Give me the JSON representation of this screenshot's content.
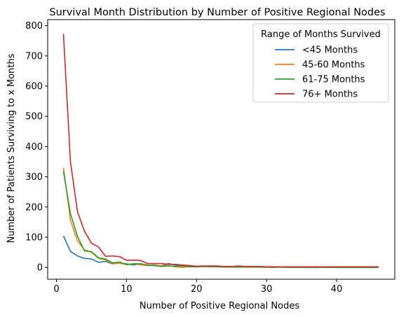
{
  "chart_data": {
    "type": "line",
    "title": "Survival Month Distribution by Number of Positive Regional Nodes",
    "xlabel": "Number of Positive Regional Nodes",
    "ylabel": "Number of Patients Surviving to x Months",
    "xlim": [
      -1.25,
      48.3
    ],
    "ylim": [
      -39,
      820
    ],
    "xticks": [
      0,
      10,
      20,
      30,
      40
    ],
    "yticks": [
      0,
      100,
      200,
      300,
      400,
      500,
      600,
      700,
      800
    ],
    "grid": false,
    "legend": {
      "title": "Range of Months Survived",
      "placement": "top-right"
    },
    "series": [
      {
        "name": "<45 Months",
        "color": "#1f77b4",
        "x": [
          1,
          2,
          3,
          4,
          5,
          6,
          7,
          8,
          9,
          10,
          11,
          12,
          13,
          14,
          15,
          16,
          17,
          18,
          19,
          20,
          21,
          22,
          23,
          24,
          25,
          26,
          27,
          28,
          29,
          30,
          31,
          32,
          33,
          34,
          35,
          36,
          37,
          38,
          39,
          40,
          41,
          42,
          43,
          44,
          45,
          46
        ],
        "values": [
          104,
          53,
          38,
          30,
          28,
          17,
          20,
          12,
          14,
          12,
          8,
          12,
          7,
          8,
          5,
          13,
          7,
          4,
          3,
          2,
          3,
          2,
          2,
          1,
          1,
          1,
          1,
          1,
          1,
          1,
          1,
          1,
          1,
          0,
          1,
          0,
          1,
          0,
          0,
          0,
          0,
          0,
          0,
          0,
          0,
          0
        ]
      },
      {
        "name": "45-60 Months",
        "color": "#ff7f0e",
        "x": [
          1,
          2,
          3,
          4,
          5,
          6,
          7,
          8,
          9,
          10,
          11,
          12,
          13,
          14,
          15,
          16,
          17,
          18,
          19,
          20,
          21,
          22,
          23,
          24,
          25,
          26,
          27,
          28,
          29,
          30,
          31,
          32,
          33,
          34,
          35,
          36,
          37,
          38,
          39,
          40,
          41,
          42,
          43,
          44,
          45,
          46
        ],
        "values": [
          330,
          157,
          88,
          58,
          50,
          30,
          25,
          13,
          14,
          10,
          12,
          9,
          6,
          7,
          5,
          6,
          2,
          0,
          3,
          3,
          4,
          3,
          2,
          2,
          1,
          2,
          1,
          1,
          1,
          0,
          1,
          1,
          0,
          1,
          0,
          1,
          1,
          0,
          0,
          0,
          0,
          0,
          0,
          0,
          0,
          0
        ]
      },
      {
        "name": "61-75 Months",
        "color": "#2ca02c",
        "x": [
          1,
          2,
          3,
          4,
          5,
          6,
          7,
          8,
          9,
          10,
          11,
          12,
          13,
          14,
          15,
          16,
          17,
          18,
          19,
          20,
          21,
          22,
          23,
          24,
          25,
          26,
          27,
          28,
          29,
          30,
          31,
          32,
          33,
          34,
          35,
          36,
          37,
          38,
          39,
          40,
          41,
          42,
          43,
          44,
          45,
          46
        ],
        "values": [
          318,
          178,
          103,
          55,
          52,
          32,
          28,
          15,
          18,
          9,
          12,
          12,
          8,
          6,
          3,
          5,
          3,
          6,
          2,
          2,
          3,
          4,
          2,
          2,
          1,
          1,
          2,
          1,
          1,
          1,
          0,
          1,
          0,
          1,
          0,
          1,
          0,
          1,
          0,
          0,
          0,
          0,
          0,
          0,
          0,
          0
        ]
      },
      {
        "name": "76+ Months",
        "color": "#d62728",
        "x": [
          1,
          2,
          3,
          4,
          5,
          6,
          7,
          8,
          9,
          10,
          11,
          12,
          13,
          14,
          15,
          16,
          17,
          18,
          19,
          20,
          21,
          22,
          23,
          24,
          25,
          26,
          27,
          28,
          29,
          30,
          31,
          32,
          33,
          34,
          35,
          36,
          37,
          38,
          39,
          40,
          41,
          42,
          43,
          44,
          45,
          46
        ],
        "values": [
          773,
          350,
          185,
          120,
          80,
          68,
          37,
          38,
          36,
          24,
          24,
          23,
          13,
          13,
          13,
          10,
          10,
          8,
          6,
          4,
          5,
          5,
          5,
          3,
          3,
          5,
          3,
          3,
          3,
          2,
          2,
          2,
          2,
          2,
          2,
          2,
          2,
          2,
          2,
          2,
          2,
          2,
          2,
          2,
          2,
          2
        ]
      }
    ]
  }
}
